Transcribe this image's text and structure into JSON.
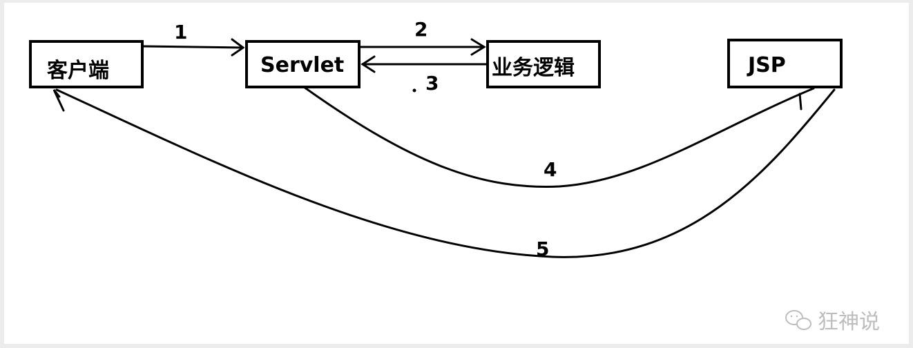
{
  "nodes": {
    "client": "客户端",
    "servlet": "Servlet",
    "logic": "业务逻辑",
    "jsp": "JSP"
  },
  "steps": {
    "s1": "1",
    "s2": "2",
    "s3": "3",
    "s4": "4",
    "s5": "5"
  },
  "watermark": {
    "text": "狂神说",
    "icon": "wechat-icon"
  },
  "colors": {
    "stroke": "#000000",
    "watermark": "#bdbdbd"
  }
}
